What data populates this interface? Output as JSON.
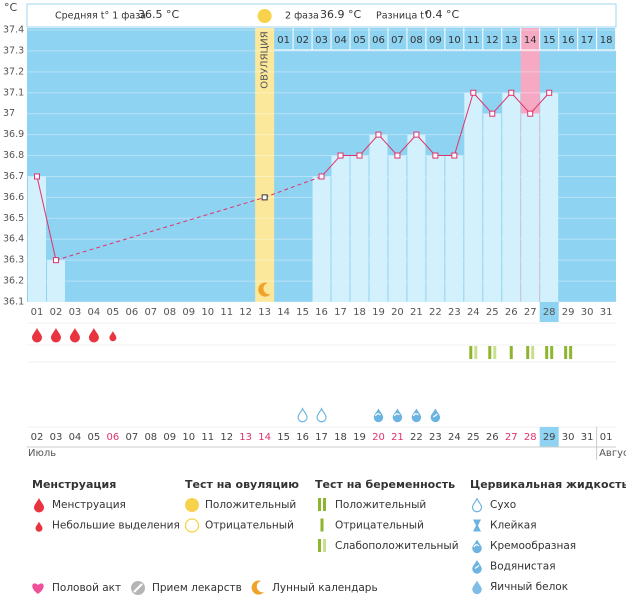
{
  "chart_data": {
    "type": "line",
    "y_label": "°C",
    "categories": [
      "01",
      "02",
      "03",
      "04",
      "05",
      "06",
      "07",
      "08",
      "09",
      "10",
      "11",
      "12",
      "13",
      "14",
      "15",
      "16",
      "17",
      "18",
      "19",
      "20",
      "21",
      "22",
      "23",
      "24",
      "25",
      "26",
      "27",
      "28",
      "29",
      "30",
      "31"
    ],
    "series": [
      {
        "name": "t°",
        "color": "#e0336b",
        "values": [
          36.7,
          36.3,
          null,
          null,
          null,
          null,
          null,
          null,
          null,
          null,
          null,
          null,
          36.6,
          null,
          null,
          36.7,
          36.8,
          36.8,
          36.9,
          36.8,
          36.9,
          36.8,
          36.8,
          37.1,
          37,
          37.1,
          37,
          37.1,
          null,
          null,
          null
        ]
      }
    ],
    "ylim": [
      36.1,
      37.4
    ],
    "yticks": [
      37.4,
      37.3,
      37.2,
      37.1,
      37,
      36.9,
      36.8,
      36.7,
      36.6,
      36.5,
      36.4,
      36.3,
      36.2,
      36.1
    ],
    "grid": true,
    "background_color": "#8fd3f2",
    "bar_color": "#d3f0fd",
    "today": "28",
    "ovulation_day": "13",
    "ovulation_label": "ОВУЛЯЦИЯ",
    "cycle_days": [
      "01",
      "02",
      "03",
      "04",
      "05",
      "06",
      "07",
      "08",
      "09",
      "10",
      "11",
      "12",
      "13",
      "14",
      "15",
      "16",
      "17",
      "18"
    ],
    "cycle_day_marked": "14",
    "cycle_day_marked_color": "#f5a9c3",
    "calendar_dates": [
      "02",
      "03",
      "04",
      "05",
      "06",
      "07",
      "08",
      "09",
      "10",
      "11",
      "12",
      "13",
      "14",
      "15",
      "16",
      "17",
      "18",
      "19",
      "20",
      "21",
      "22",
      "23",
      "24",
      "25",
      "26",
      "27",
      "28",
      "29",
      "30",
      "31",
      "01"
    ],
    "calendar_date_colors": [
      "#444",
      "#444",
      "#444",
      "#444",
      "#e0336b",
      "#444",
      "#444",
      "#444",
      "#444",
      "#444",
      "#444",
      "#e0336b",
      "#e0336b",
      "#444",
      "#444",
      "#444",
      "#444",
      "#444",
      "#e0336b",
      "#e0336b",
      "#444",
      "#444",
      "#444",
      "#444",
      "#444",
      "#e0336b",
      "#e0336b",
      "#444",
      "#444",
      "#444",
      "#444"
    ],
    "calendar_today": "29",
    "month_labels": [
      "Июль",
      "Август"
    ]
  },
  "header": {
    "phase1_label": "Средняя t° 1 фаза",
    "phase1_value": "36.5 °C",
    "phase2_label": "2 фаза",
    "phase2_value": "36.9 °C",
    "diff_label": "Разница t°",
    "diff_value": "0.4 °C"
  },
  "legend": {
    "groups": [
      {
        "title": "Менструация",
        "items": [
          "Менструация",
          "Небольшие выделения"
        ],
        "days": [
          "Менструация",
          "Менструация",
          "Менструация",
          "Менструация",
          "Небольшие выделения",
          null,
          null,
          null,
          null,
          null,
          null,
          null,
          null,
          null,
          null,
          null,
          null,
          null,
          null,
          null,
          null,
          null,
          null,
          null,
          null,
          null,
          null,
          null,
          null,
          null,
          null
        ]
      },
      {
        "title": "Тест на овуляцию",
        "items": [
          "Положительный",
          "Отрицательный"
        ]
      },
      {
        "title": "Тест на беременность",
        "items": [
          "Положительный",
          "Отрицательный",
          "Слабоположительный"
        ],
        "days": [
          null,
          null,
          null,
          null,
          null,
          null,
          null,
          null,
          null,
          null,
          null,
          null,
          null,
          null,
          null,
          null,
          null,
          null,
          null,
          null,
          null,
          null,
          null,
          "Слабоположительный",
          "Слабоположительный",
          "Отрицательный",
          "Слабоположительный",
          "Положительный",
          "Положительный",
          null,
          null
        ]
      },
      {
        "title": "Цервикальная жидкость",
        "items": [
          "Сухо",
          "Клейкая",
          "Кремообразная",
          "Водянистая",
          "Яичный белок"
        ],
        "days": [
          null,
          null,
          null,
          null,
          null,
          null,
          null,
          null,
          null,
          null,
          null,
          null,
          null,
          null,
          "Сухо",
          "Сухо",
          null,
          null,
          "Кремообразная",
          "Кремообразная",
          "Кремообразная",
          "Водянистая",
          null,
          null,
          null,
          null,
          null,
          null,
          null,
          null,
          null
        ]
      }
    ],
    "extras": [
      "Половой акт",
      "Прием лекарств",
      "Лунный календарь"
    ]
  }
}
